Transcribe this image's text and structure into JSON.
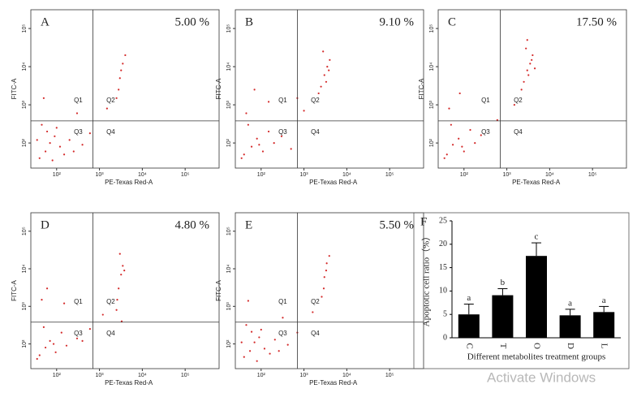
{
  "chart_data": [
    {
      "type": "flow",
      "panel_label": "A",
      "annotation": "5.00  %",
      "xlabel": "PE-Texas Red-A",
      "ylabel": "FITC-A",
      "color": "#d42a2a",
      "quadrant_labels": [
        "Q1",
        "Q2",
        "Q3",
        "Q4"
      ],
      "quadrant_x": 700,
      "quadrant_y": 380,
      "log_scale": true,
      "xlim": [
        25,
        620000
      ],
      "ylim": [
        22,
        310000
      ],
      "xticks": [
        {
          "value": 100,
          "label": "10²"
        },
        {
          "value": 1000,
          "label": "10³"
        },
        {
          "value": 10000,
          "label": "10⁴"
        },
        {
          "value": 100000,
          "label": "10⁵"
        }
      ],
      "yticks": [
        {
          "value": 100,
          "label": "10²"
        },
        {
          "value": 1000,
          "label": "10³"
        },
        {
          "value": 10000,
          "label": "10⁴"
        },
        {
          "value": 100000,
          "label": "10⁵"
        }
      ],
      "x": [
        40,
        55,
        70,
        90,
        120,
        150,
        200,
        60,
        45,
        80,
        100,
        35,
        250,
        400,
        600,
        3000,
        3500,
        2800,
        4000,
        3200,
        2500,
        1500,
        300,
        50
      ],
      "y": [
        40,
        60,
        100,
        150,
        80,
        50,
        120,
        200,
        300,
        35,
        250,
        120,
        60,
        90,
        180,
        5000,
        12000,
        2500,
        20000,
        8000,
        1500,
        800,
        600,
        1500
      ]
    },
    {
      "type": "flow",
      "panel_label": "B",
      "annotation": "9.10 %",
      "xlabel": "PE-Texas Red-A",
      "ylabel": "FITC-A",
      "color": "#d42a2a",
      "quadrant_labels": [
        "Q1",
        "Q2",
        "Q3",
        "Q4"
      ],
      "quadrant_x": 700,
      "quadrant_y": 380,
      "log_scale": true,
      "xlim": [
        25,
        620000
      ],
      "ylim": [
        22,
        310000
      ],
      "xticks": [
        {
          "value": 100,
          "label": "10²"
        },
        {
          "value": 1000,
          "label": "10³"
        },
        {
          "value": 10000,
          "label": "10⁴"
        },
        {
          "value": 100000,
          "label": "10⁵"
        }
      ],
      "yticks": [
        {
          "value": 100,
          "label": "10²"
        },
        {
          "value": 1000,
          "label": "10³"
        },
        {
          "value": 10000,
          "label": "10⁴"
        },
        {
          "value": 100000,
          "label": "10⁵"
        }
      ],
      "x": [
        40,
        60,
        80,
        110,
        150,
        200,
        50,
        35,
        90,
        300,
        500,
        2500,
        3000,
        3500,
        4000,
        2800,
        3300,
        3800,
        2200,
        1000,
        700,
        150,
        70,
        45
      ],
      "y": [
        50,
        80,
        130,
        60,
        200,
        100,
        300,
        40,
        90,
        150,
        70,
        3000,
        6000,
        10000,
        15000,
        25000,
        4000,
        8000,
        2000,
        700,
        1500,
        1200,
        2500,
        600
      ]
    },
    {
      "type": "flow",
      "panel_label": "C",
      "annotation": "17.50 %",
      "xlabel": "PE-Texas Red-A",
      "ylabel": "FITC-A",
      "color": "#d42a2a",
      "quadrant_labels": [
        "Q1",
        "Q2",
        "Q3",
        "Q4"
      ],
      "quadrant_x": 700,
      "quadrant_y": 380,
      "log_scale": true,
      "xlim": [
        25,
        620000
      ],
      "ylim": [
        22,
        310000
      ],
      "xticks": [
        {
          "value": 100,
          "label": "10²"
        },
        {
          "value": 1000,
          "label": "10³"
        },
        {
          "value": 10000,
          "label": "10⁴"
        },
        {
          "value": 100000,
          "label": "10⁵"
        }
      ],
      "yticks": [
        {
          "value": 100,
          "label": "10²"
        },
        {
          "value": 1000,
          "label": "10³"
        },
        {
          "value": 10000,
          "label": "10⁴"
        },
        {
          "value": 100000,
          "label": "10⁵"
        }
      ],
      "x": [
        40,
        55,
        75,
        100,
        140,
        180,
        50,
        35,
        90,
        250,
        2500,
        3000,
        3500,
        4000,
        2800,
        3200,
        3800,
        4500,
        2200,
        3000,
        1500,
        600,
        80,
        45
      ],
      "y": [
        50,
        90,
        130,
        60,
        220,
        100,
        300,
        40,
        80,
        160,
        4000,
        8000,
        12000,
        20000,
        30000,
        6000,
        15000,
        9000,
        2500,
        50000,
        1000,
        400,
        2000,
        800
      ]
    },
    {
      "type": "flow",
      "panel_label": "D",
      "annotation": "4.80  %",
      "xlabel": "PE-Texas Red-A",
      "ylabel": "FITC-A",
      "color": "#d42a2a",
      "quadrant_labels": [
        "Q1",
        "Q2",
        "Q3",
        "Q4"
      ],
      "quadrant_x": 700,
      "quadrant_y": 380,
      "log_scale": true,
      "xlim": [
        25,
        620000
      ],
      "ylim": [
        22,
        310000
      ],
      "xticks": [
        {
          "value": 100,
          "label": "10²"
        },
        {
          "value": 1000,
          "label": "10³"
        },
        {
          "value": 10000,
          "label": "10⁴"
        },
        {
          "value": 100000,
          "label": "10⁵"
        }
      ],
      "yticks": [
        {
          "value": 100,
          "label": "10²"
        },
        {
          "value": 1000,
          "label": "10³"
        },
        {
          "value": 10000,
          "label": "10⁴"
        },
        {
          "value": 100000,
          "label": "10⁵"
        }
      ],
      "x": [
        40,
        55,
        70,
        95,
        130,
        170,
        50,
        35,
        85,
        300,
        2800,
        3200,
        3500,
        3000,
        2600,
        3800,
        1200,
        600,
        150,
        60,
        45,
        400,
        3300,
        2500
      ],
      "y": [
        50,
        80,
        120,
        60,
        200,
        90,
        280,
        40,
        100,
        140,
        3000,
        7000,
        12000,
        25000,
        1500,
        9000,
        600,
        250,
        1200,
        3000,
        1500,
        120,
        400,
        800
      ]
    },
    {
      "type": "flow",
      "panel_label": "E",
      "annotation": "5.50 %",
      "xlabel": "PE-Texas Red-A",
      "ylabel": "FITC-A",
      "color": "#d42a2a",
      "quadrant_labels": [
        "Q1",
        "Q2",
        "Q3",
        "Q4"
      ],
      "quadrant_x": 700,
      "quadrant_y": 380,
      "log_scale": true,
      "xlim": [
        25,
        620000
      ],
      "ylim": [
        22,
        310000
      ],
      "xticks": [
        {
          "value": 100,
          "label": "10²"
        },
        {
          "value": 1000,
          "label": "10³"
        },
        {
          "value": 10000,
          "label": "10⁴"
        },
        {
          "value": 100000,
          "label": "10⁵"
        }
      ],
      "yticks": [
        {
          "value": 100,
          "label": "10²"
        },
        {
          "value": 1000,
          "label": "10³"
        },
        {
          "value": 10000,
          "label": "10⁴"
        },
        {
          "value": 100000,
          "label": "10⁵"
        }
      ],
      "x": [
        40,
        55,
        70,
        90,
        120,
        160,
        210,
        60,
        45,
        80,
        100,
        35,
        260,
        420,
        3000,
        3400,
        2900,
        3900,
        3300,
        2600,
        1600,
        320,
        50,
        700
      ],
      "y": [
        45,
        65,
        110,
        150,
        75,
        55,
        130,
        210,
        320,
        35,
        240,
        110,
        65,
        95,
        6000,
        14000,
        3000,
        22000,
        9000,
        1800,
        700,
        500,
        1400,
        200
      ]
    },
    {
      "type": "bar",
      "panel_label": "F",
      "xlabel": "Different metabolites treatment groups",
      "ylabel": "Apoptotic cell ratio（%）",
      "categories": [
        "C",
        "T",
        "O",
        "D",
        "L"
      ],
      "values": [
        5.0,
        9.1,
        17.5,
        4.8,
        5.5
      ],
      "errors": [
        2.2,
        1.4,
        2.8,
        1.3,
        1.2
      ],
      "letters": [
        "a",
        "b",
        "c",
        "a",
        "a"
      ],
      "color": "#000000",
      "ylim": [
        0,
        25
      ],
      "yticks": [
        0,
        5,
        10,
        15,
        20,
        25
      ]
    }
  ],
  "watermark": "Activate Windows"
}
